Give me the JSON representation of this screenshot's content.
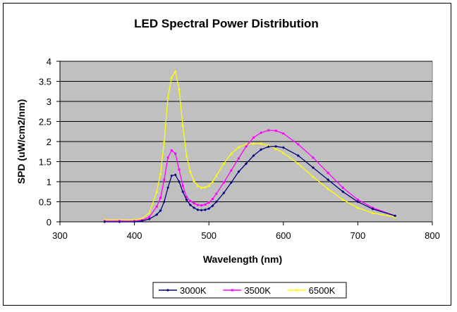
{
  "chart_data": {
    "type": "line",
    "title": "LED Spectral Power Distribution",
    "xlabel": "Wavelength (nm)",
    "ylabel": "SPD (uW/cm2/nm)",
    "xlim": [
      300,
      800
    ],
    "ylim": [
      0,
      4
    ],
    "x_ticks": [
      300,
      400,
      500,
      600,
      700,
      800
    ],
    "y_ticks": [
      0,
      0.5,
      1,
      1.5,
      2,
      2.5,
      3,
      3.5,
      4
    ],
    "x_tick_labels": [
      "300",
      "400",
      "500",
      "600",
      "700",
      "800"
    ],
    "y_tick_labels": [
      "0",
      "0.5",
      "1",
      "1.5",
      "2",
      "2.5",
      "3",
      "3.5",
      "4"
    ],
    "grid": "horizontal",
    "plot_background": "#c0c0c0",
    "legend_position": "bottom",
    "x": [
      360,
      380,
      400,
      410,
      420,
      430,
      435,
      440,
      445,
      450,
      455,
      460,
      465,
      470,
      475,
      480,
      485,
      490,
      495,
      500,
      505,
      510,
      520,
      530,
      540,
      550,
      560,
      570,
      580,
      590,
      600,
      620,
      640,
      660,
      680,
      700,
      720,
      750
    ],
    "series": [
      {
        "name": "3000K",
        "color": "#000080",
        "marker": "diamond",
        "values": [
          0.0,
          0.0,
          0.0,
          0.02,
          0.07,
          0.18,
          0.28,
          0.5,
          0.85,
          1.15,
          1.17,
          1.0,
          0.75,
          0.55,
          0.42,
          0.35,
          0.3,
          0.29,
          0.3,
          0.33,
          0.4,
          0.5,
          0.72,
          0.98,
          1.25,
          1.45,
          1.65,
          1.8,
          1.87,
          1.88,
          1.85,
          1.65,
          1.35,
          1.05,
          0.75,
          0.5,
          0.32,
          0.15
        ]
      },
      {
        "name": "3500K",
        "color": "#ff00ff",
        "marker": "square",
        "values": [
          0.02,
          0.02,
          0.02,
          0.04,
          0.12,
          0.38,
          0.6,
          1.05,
          1.6,
          1.78,
          1.7,
          1.3,
          0.9,
          0.62,
          0.52,
          0.46,
          0.42,
          0.41,
          0.43,
          0.48,
          0.57,
          0.7,
          0.98,
          1.28,
          1.58,
          1.88,
          2.1,
          2.22,
          2.28,
          2.27,
          2.2,
          1.93,
          1.6,
          1.22,
          0.85,
          0.55,
          0.35,
          0.15
        ]
      },
      {
        "name": "6500K",
        "color": "#ffff00",
        "marker": "triangle",
        "values": [
          0.05,
          0.05,
          0.05,
          0.08,
          0.22,
          0.75,
          1.2,
          2.0,
          3.1,
          3.6,
          3.75,
          3.3,
          2.4,
          1.65,
          1.25,
          1.02,
          0.9,
          0.85,
          0.86,
          0.9,
          1.0,
          1.15,
          1.45,
          1.7,
          1.86,
          1.93,
          1.95,
          1.95,
          1.9,
          1.82,
          1.72,
          1.45,
          1.12,
          0.82,
          0.55,
          0.35,
          0.22,
          0.12
        ]
      }
    ]
  }
}
